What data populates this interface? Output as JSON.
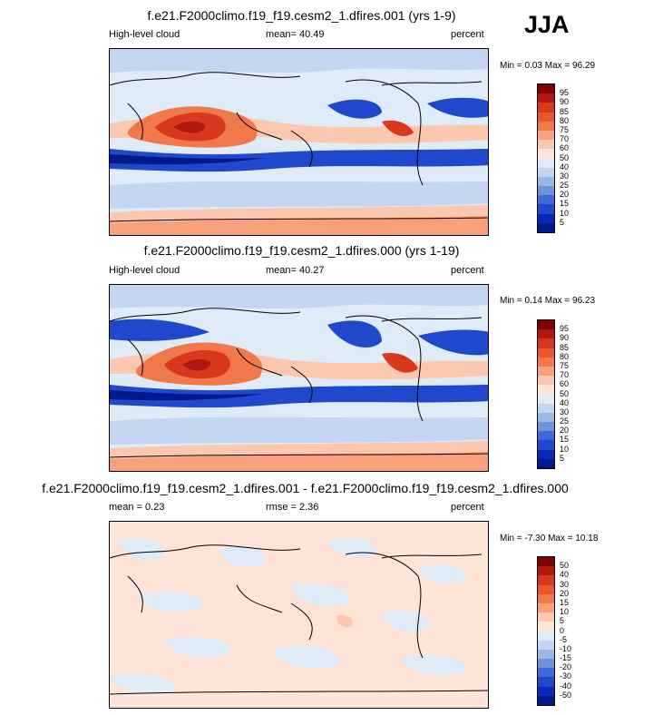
{
  "season": "JJA",
  "panels": [
    {
      "title": "f.e21.F2000climo.f19_f19.cesm2_1.dfires.001 (yrs 1-9)",
      "left_label": "High-level cloud",
      "center_label": "mean=  40.49",
      "right_label": "percent",
      "minmax": "Min =  0.03 Max =  96.29",
      "colorbar_labels": [
        "95",
        "90",
        "85",
        "80",
        "75",
        "70",
        "60",
        "50",
        "40",
        "30",
        "25",
        "20",
        "15",
        "10",
        "5"
      ],
      "colorbar_colors": [
        "#800000",
        "#b2180f",
        "#d8391e",
        "#e9582c",
        "#f0784a",
        "#f8a07b",
        "#fbc7ae",
        "#fde4d6",
        "#e0ebf8",
        "#c3d5f0",
        "#9ab8e6",
        "#6e93db",
        "#4068d6",
        "#2048cc",
        "#0a28b8",
        "#001a8c"
      ]
    },
    {
      "title": "f.e21.F2000climo.f19_f19.cesm2_1.dfires.000 (yrs 1-19)",
      "left_label": "High-level cloud",
      "center_label": "mean=  40.27",
      "right_label": "percent",
      "minmax": "Min =  0.14 Max =  96.23",
      "colorbar_labels": [
        "95",
        "90",
        "85",
        "80",
        "75",
        "70",
        "60",
        "50",
        "40",
        "30",
        "25",
        "20",
        "15",
        "10",
        "5"
      ],
      "colorbar_colors": [
        "#800000",
        "#b2180f",
        "#d8391e",
        "#e9582c",
        "#f0784a",
        "#f8a07b",
        "#fbc7ae",
        "#fde4d6",
        "#e0ebf8",
        "#c3d5f0",
        "#9ab8e6",
        "#6e93db",
        "#4068d6",
        "#2048cc",
        "#0a28b8",
        "#001a8c"
      ]
    },
    {
      "title": "f.e21.F2000climo.f19_f19.cesm2_1.dfires.001 - f.e21.F2000climo.f19_f19.cesm2_1.dfires.000",
      "left_label": "mean =  0.23",
      "center_label": "rmse =  2.36",
      "right_label": "percent",
      "minmax": "Min =  -7.30 Max =  10.18",
      "colorbar_labels": [
        "50",
        "40",
        "30",
        "20",
        "15",
        "10",
        "5",
        "0",
        "-5",
        "-10",
        "-15",
        "-20",
        "-30",
        "-40",
        "-50"
      ],
      "colorbar_colors": [
        "#800000",
        "#b2180f",
        "#d8391e",
        "#e9582c",
        "#f0784a",
        "#f8a07b",
        "#fbc7ae",
        "#fde4d6",
        "#e0ebf8",
        "#c3d5f0",
        "#9ab8e6",
        "#6e93db",
        "#4068d6",
        "#2048cc",
        "#0a28b8",
        "#001a8c"
      ]
    }
  ],
  "chart_data": [
    {
      "type": "heatmap",
      "title": "f.e21.F2000climo.f19_f19.cesm2_1.dfires.001 (yrs 1-9)",
      "field": "High-level cloud",
      "units": "percent",
      "mean": 40.49,
      "min": 0.03,
      "max": 96.29,
      "levels": [
        5,
        10,
        15,
        20,
        25,
        30,
        40,
        50,
        60,
        70,
        75,
        80,
        85,
        90,
        95
      ]
    },
    {
      "type": "heatmap",
      "title": "f.e21.F2000climo.f19_f19.cesm2_1.dfires.000 (yrs 1-19)",
      "field": "High-level cloud",
      "units": "percent",
      "mean": 40.27,
      "min": 0.14,
      "max": 96.23,
      "levels": [
        5,
        10,
        15,
        20,
        25,
        30,
        40,
        50,
        60,
        70,
        75,
        80,
        85,
        90,
        95
      ]
    },
    {
      "type": "heatmap",
      "title": "f.e21.F2000climo.f19_f19.cesm2_1.dfires.001 - f.e21.F2000climo.f19_f19.cesm2_1.dfires.000",
      "units": "percent",
      "mean": 0.23,
      "rmse": 2.36,
      "min": -7.3,
      "max": 10.18,
      "levels": [
        -50,
        -40,
        -30,
        -20,
        -15,
        -10,
        -5,
        0,
        5,
        10,
        15,
        20,
        30,
        40,
        50
      ]
    }
  ]
}
